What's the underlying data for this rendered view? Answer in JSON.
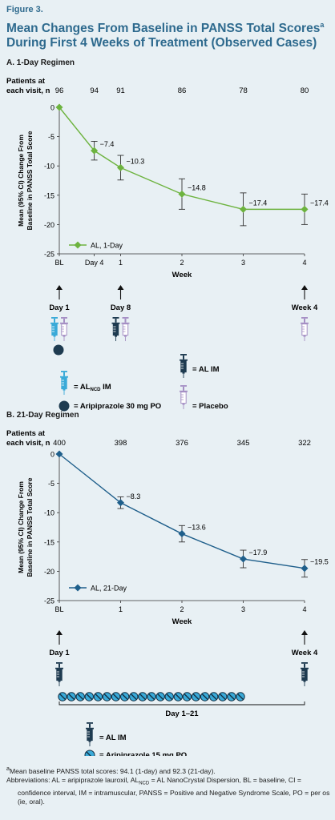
{
  "figure_label": "Figure 3.",
  "title_line1": "Mean Changes From Baseline in PANSS Total Scores",
  "title_sup": "a",
  "title_line2": "During First 4 Weeks of Treatment (Observed Cases)",
  "colors": {
    "title": "#2e6a8e",
    "green": "#6db33f",
    "blue": "#1f5f8b",
    "light_blue": "#3aaad8",
    "dark_navy": "#1e3b50",
    "purple": "#a58fc4"
  },
  "chart_data": [
    {
      "type": "line",
      "section_title": "A. 1-Day Regimen",
      "patients_label_line1": "Patients at",
      "patients_label_line2": "each visit, n",
      "patients_n": [
        "96",
        "94",
        "91",
        "86",
        "78",
        "80"
      ],
      "ylabel_line1": "Mean (95% CI) Change From",
      "ylabel_line2": "Baseline in PANSS Total Score",
      "xlabel": "Week",
      "x": [
        0,
        0.57,
        1,
        2,
        3,
        4
      ],
      "x_tick_values": [
        0,
        0.57,
        1,
        2,
        3,
        4
      ],
      "x_tick_labels": [
        "BL",
        "Day 4",
        "1",
        "2",
        "3",
        "4"
      ],
      "ylim": [
        -25,
        0
      ],
      "y_ticks": [
        0,
        -5,
        -10,
        -15,
        -20,
        -25
      ],
      "y_tick_labels": [
        "0",
        "-5",
        "-10",
        "-15",
        "-20",
        "-25"
      ],
      "xlim": [
        0,
        4
      ],
      "series": [
        {
          "name": "AL, 1-Day",
          "values": [
            0,
            -7.4,
            -10.3,
            -14.8,
            -17.4,
            -17.4
          ],
          "ci_low": [
            0,
            -9.0,
            -12.4,
            -17.4,
            -20.2,
            -20.0
          ],
          "ci_high": [
            0,
            -5.8,
            -8.2,
            -12.2,
            -14.6,
            -14.8
          ],
          "labels": [
            "",
            "−7.4",
            "−10.3",
            "−14.8",
            "−17.4",
            "−17.4"
          ]
        }
      ],
      "legend_position": "bottom-left",
      "dosing_days": [
        "Day 1",
        "Day 8",
        "Week 4"
      ],
      "dosing_x": [
        0,
        1,
        4
      ],
      "key": {
        "alncd_prefix": "= AL",
        "alncd_sub": "NCD",
        "alncd_suffix": " IM",
        "al_im": "= AL IM",
        "aripiprazole": "= Aripiprazole 30 mg PO",
        "placebo": "= Placebo"
      }
    },
    {
      "type": "line",
      "section_title": "B. 21-Day Regimen",
      "patients_label_line1": "Patients at",
      "patients_label_line2": "each visit, n",
      "patients_n": [
        "400",
        "398",
        "376",
        "345",
        "322"
      ],
      "ylabel_line1": "Mean (95% CI) Change From",
      "ylabel_line2": "Baseline in PANSS Total Score",
      "xlabel": "Week",
      "x": [
        0,
        1,
        2,
        3,
        4
      ],
      "x_tick_values": [
        0,
        1,
        2,
        3,
        4
      ],
      "x_tick_labels": [
        "BL",
        "1",
        "2",
        "3",
        "4"
      ],
      "ylim": [
        -25,
        0
      ],
      "y_ticks": [
        0,
        -5,
        -10,
        -15,
        -20,
        -25
      ],
      "y_tick_labels": [
        "0",
        "-5",
        "-10",
        "-15",
        "-20",
        "-25"
      ],
      "xlim": [
        0,
        4
      ],
      "series": [
        {
          "name": "AL, 21-Day",
          "values": [
            0,
            -8.3,
            -13.6,
            -17.9,
            -19.5
          ],
          "ci_low": [
            0,
            -9.3,
            -15.0,
            -19.4,
            -21.0
          ],
          "ci_high": [
            0,
            -7.3,
            -12.2,
            -16.4,
            -18.0
          ],
          "labels": [
            "",
            "−8.3",
            "−13.6",
            "−17.9",
            "−19.5"
          ]
        }
      ],
      "legend_position": "bottom-left",
      "dosing_days": [
        "Day 1",
        "Week 4"
      ],
      "dosing_x": [
        0,
        4
      ],
      "pills_label": "Day 1–21",
      "key": {
        "al_im": "= AL IM",
        "aripiprazole": "= Aripiprazole 15 mg PO"
      }
    }
  ],
  "footnote": {
    "sup": "a",
    "line1": "Mean baseline PANSS total scores: 94.1 (1-day) and 92.3 (21-day).",
    "abbr_a": "Abbreviations: AL = aripiprazole lauroxil, AL",
    "abbr_sub": "NCD",
    "abbr_b": " = AL NanoCrystal Dispersion, BL = baseline, CI = confidence interval, IM = intramuscular, PANSS = Positive and Negative Syndrome Scale, PO = per os (ie, oral)."
  }
}
